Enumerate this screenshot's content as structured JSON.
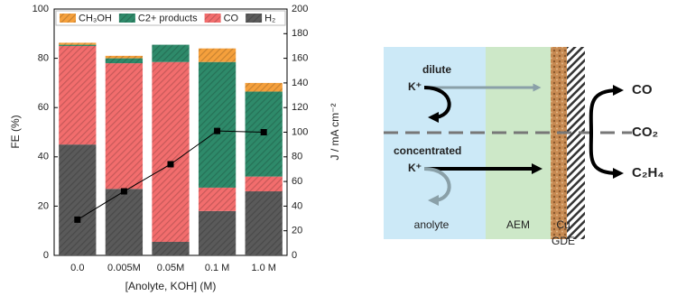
{
  "chart_data": {
    "type": "bar",
    "stacked": true,
    "categories": [
      "0.0",
      "0.005M",
      "0.05M",
      "0.1 M",
      "1.0 M"
    ],
    "xlabel": "[Anolyte, KOH] (M)",
    "ylabel": "FE (%)",
    "y2label": "J / mA cm⁻²",
    "ylim": [
      0,
      100
    ],
    "yticks": [
      0,
      20,
      40,
      60,
      80,
      100
    ],
    "y2lim": [
      0,
      200
    ],
    "y2ticks": [
      0,
      20,
      40,
      60,
      80,
      100,
      120,
      140,
      160,
      180,
      200
    ],
    "legend": "top",
    "series": [
      {
        "name": "H₂",
        "color": "#5a5a5a",
        "values": [
          45,
          27,
          5.5,
          18,
          26
        ]
      },
      {
        "name": "CO",
        "color": "#f26d6d",
        "values": [
          40,
          51,
          73,
          9.5,
          6
        ]
      },
      {
        "name": "C2+ products",
        "color": "#2e8a6a",
        "values": [
          0.5,
          2,
          7,
          51,
          34.5
        ]
      },
      {
        "name": "CH₃OH",
        "color": "#f5a03c",
        "values": [
          0.8,
          1,
          0,
          5.5,
          3.5
        ]
      },
      {
        "type": "line",
        "axis": "y2",
        "color": "#000000",
        "values": [
          29,
          52,
          74,
          101,
          100
        ]
      }
    ]
  },
  "diagram": {
    "dilute": "dilute",
    "dilute_ion": "K⁺",
    "concentrated": "concentrated",
    "concentrated_ion": "K⁺",
    "anolyte": "anolyte",
    "membrane": "AEM",
    "catalyst": "Cu",
    "electrode": "GDE",
    "product_top": "CO",
    "reactant": "CO₂",
    "product_bottom": "C₂H₄"
  }
}
